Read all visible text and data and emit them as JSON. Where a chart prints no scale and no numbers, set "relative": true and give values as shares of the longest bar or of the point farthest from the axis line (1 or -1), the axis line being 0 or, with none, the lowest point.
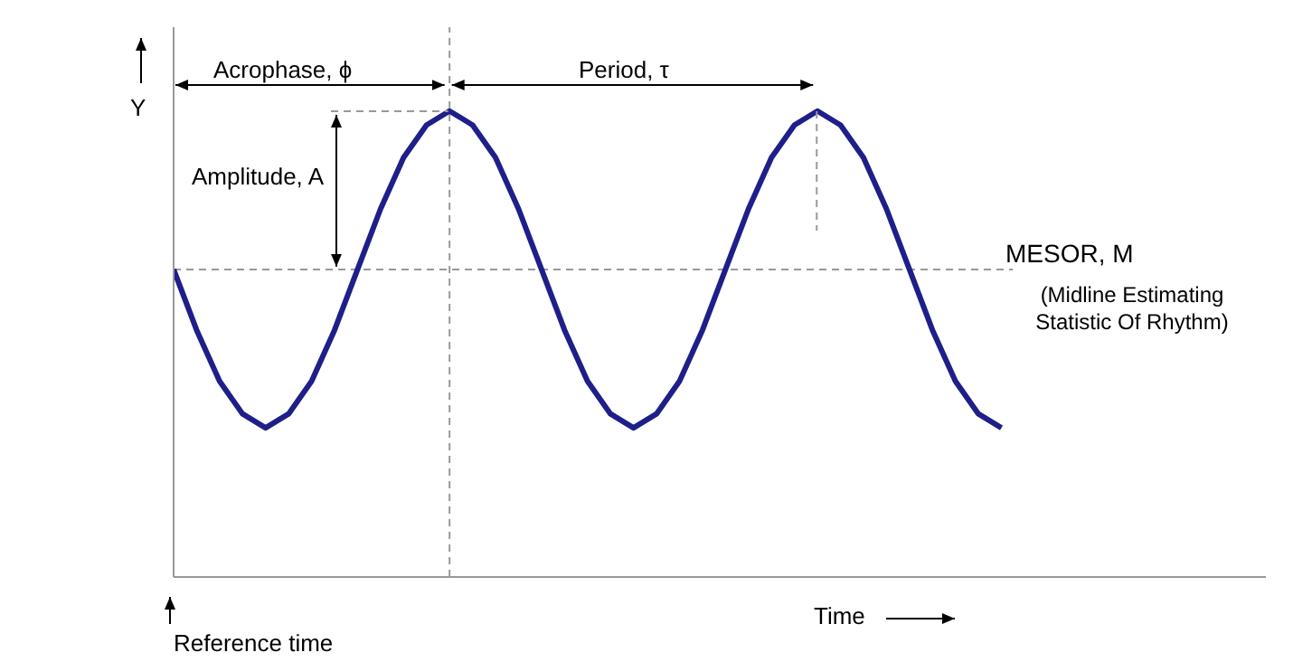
{
  "chart_data": {
    "type": "line",
    "relative": true,
    "xlabel": "Time",
    "ylabel": "Y",
    "marker": "none",
    "line_style": "solid",
    "categories": [
      null,
      null,
      null,
      null,
      null,
      null,
      null,
      null,
      null,
      null,
      null,
      null,
      null,
      null,
      null,
      null,
      null,
      null,
      null,
      null,
      null,
      null,
      null,
      null,
      null,
      null,
      null,
      null,
      null,
      null,
      null,
      null,
      null,
      null,
      null,
      null,
      null
    ],
    "series": [
      {
        "color": "#1f1f8a",
        "values": [
          0.66,
          0.53,
          0.42,
          0.35,
          0.32,
          0.35,
          0.42,
          0.53,
          0.66,
          0.79,
          0.9,
          0.97,
          1,
          0.97,
          0.9,
          0.79,
          0.66,
          0.53,
          0.42,
          0.35,
          0.32,
          0.35,
          0.42,
          0.53,
          0.66,
          0.79,
          0.9,
          0.97,
          1,
          0.97,
          0.9,
          0.79,
          0.66,
          0.53,
          0.42,
          0.35,
          0.32
        ]
      }
    ],
    "ref_lines": [
      {
        "axis": "y",
        "value": 0.66,
        "label": "MESOR, M",
        "line_style": "dashed",
        "color": "#999999"
      }
    ],
    "annotations": [
      "Acrophase, ϕ",
      "Period, τ",
      "Amplitude, A",
      "(Midline Estimating Statistic Of Rhythm)",
      "Reference time"
    ]
  }
}
